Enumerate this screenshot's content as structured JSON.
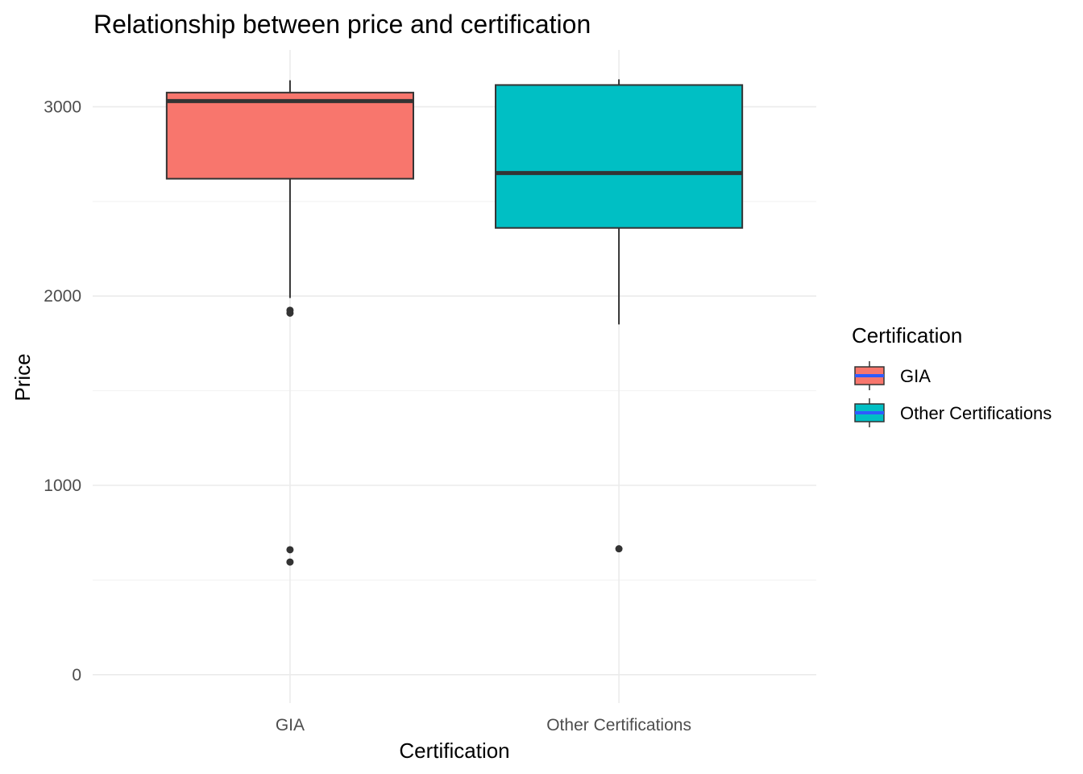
{
  "chart_data": {
    "type": "boxplot",
    "title": "Relationship between price and certification",
    "xlabel": "Certification",
    "ylabel": "Price",
    "ylim": [
      -150,
      3300
    ],
    "y_ticks": [
      0,
      1000,
      2000,
      3000
    ],
    "grid": true,
    "legend": {
      "title": "Certification",
      "position": "right",
      "entries": [
        "GIA",
        "Other Certifications"
      ]
    },
    "series": [
      {
        "category": "GIA",
        "color": "#F8766D",
        "whisker_low": 1990,
        "q1": 2620,
        "median": 3030,
        "q3": 3075,
        "whisker_high": 3140,
        "outliers": [
          1910,
          1925,
          660,
          595
        ]
      },
      {
        "category": "Other Certifications",
        "color": "#00BFC4",
        "whisker_low": 1850,
        "q1": 2360,
        "median": 2650,
        "q3": 3115,
        "whisker_high": 3145,
        "outliers": [
          665
        ]
      }
    ]
  }
}
